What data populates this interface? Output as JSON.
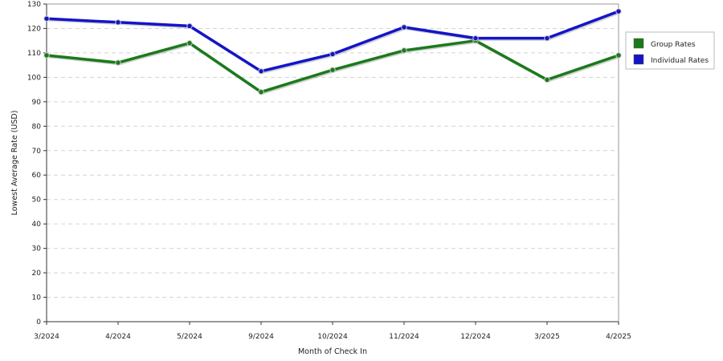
{
  "chart_data": {
    "type": "line",
    "title": "",
    "xlabel": "Month of Check In",
    "ylabel": "Lowest Average Rate (USD)",
    "categories": [
      "3/2024",
      "4/2024",
      "5/2024",
      "9/2024",
      "10/2024",
      "11/2024",
      "12/2024",
      "3/2025",
      "4/2025"
    ],
    "ylim": [
      0,
      130
    ],
    "ytick_step": 10,
    "grid": true,
    "legend_position": "right",
    "series": [
      {
        "name": "Group Rates",
        "color": "#1a7a1a",
        "values": [
          109,
          106,
          114,
          94,
          103,
          111,
          115,
          99,
          109
        ]
      },
      {
        "name": "Individual Rates",
        "color": "#1414c8",
        "values": [
          124,
          122.5,
          121,
          102.5,
          109.5,
          120.5,
          116,
          116,
          127
        ]
      }
    ]
  }
}
